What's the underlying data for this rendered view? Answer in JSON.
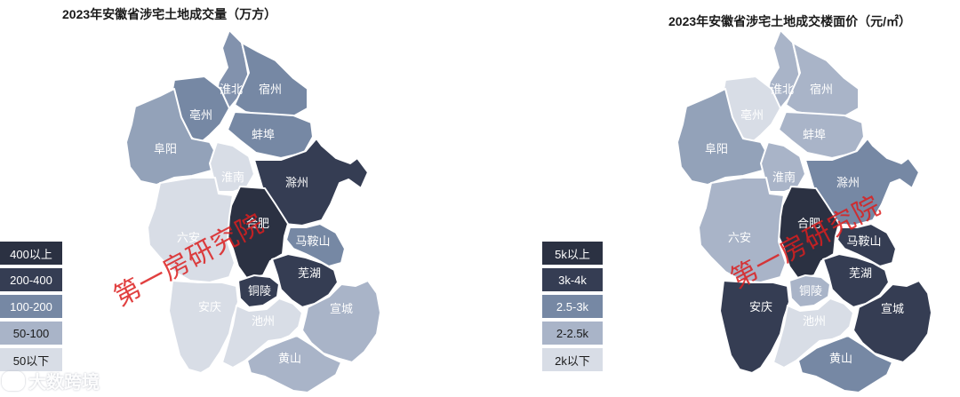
{
  "maps": [
    {
      "title": "2023年安徽省涉宅土地成交量（万方）",
      "legend": [
        {
          "label": "400以上",
          "color": "#2b3142"
        },
        {
          "label": "200-400",
          "color": "#353d53"
        },
        {
          "label": "100-200",
          "color": "#7688a4"
        },
        {
          "label": "50-100",
          "color": "#a9b4c8"
        },
        {
          "label": "50以下",
          "color": "#d8dde6"
        }
      ],
      "cities": [
        {
          "name": "淮北",
          "color": "#8292ad"
        },
        {
          "name": "宿州",
          "color": "#7688a4"
        },
        {
          "name": "亳州",
          "color": "#7688a4"
        },
        {
          "name": "蚌埠",
          "color": "#7688a4"
        },
        {
          "name": "阜阳",
          "color": "#93a2b9"
        },
        {
          "name": "淮南",
          "color": "#d8dde6"
        },
        {
          "name": "滁州",
          "color": "#353d53"
        },
        {
          "name": "合肥",
          "color": "#2b3142"
        },
        {
          "name": "六安",
          "color": "#d8dde6"
        },
        {
          "name": "马鞍山",
          "color": "#7688a4"
        },
        {
          "name": "芜湖",
          "color": "#353d53"
        },
        {
          "name": "铜陵",
          "color": "#353d53"
        },
        {
          "name": "安庆",
          "color": "#d8dde6"
        },
        {
          "name": "池州",
          "color": "#d8dde6"
        },
        {
          "name": "宣城",
          "color": "#a9b4c8"
        },
        {
          "name": "黄山",
          "color": "#a9b4c8"
        }
      ],
      "watermark": "第一房研究院"
    },
    {
      "title": "2023年安徽省涉宅土地成交楼面价（元/㎡）",
      "legend": [
        {
          "label": "5k以上",
          "color": "#2b3142"
        },
        {
          "label": "3k-4k",
          "color": "#353d53"
        },
        {
          "label": "2.5-3k",
          "color": "#7688a4"
        },
        {
          "label": "2-2.5k",
          "color": "#a9b4c8"
        },
        {
          "label": "2k以下",
          "color": "#d8dde6"
        }
      ],
      "cities": [
        {
          "name": "淮北",
          "color": "#a9b4c8"
        },
        {
          "name": "宿州",
          "color": "#a9b4c8"
        },
        {
          "name": "亳州",
          "color": "#d8dde6"
        },
        {
          "name": "蚌埠",
          "color": "#a9b4c8"
        },
        {
          "name": "阜阳",
          "color": "#93a2b9"
        },
        {
          "name": "淮南",
          "color": "#a9b4c8"
        },
        {
          "name": "滁州",
          "color": "#7688a4"
        },
        {
          "name": "合肥",
          "color": "#2b3142"
        },
        {
          "name": "六安",
          "color": "#a9b4c8"
        },
        {
          "name": "马鞍山",
          "color": "#353d53"
        },
        {
          "name": "芜湖",
          "color": "#353d53"
        },
        {
          "name": "铜陵",
          "color": "#a9b4c8"
        },
        {
          "name": "安庆",
          "color": "#353d53"
        },
        {
          "name": "池州",
          "color": "#d8dde6"
        },
        {
          "name": "宣城",
          "color": "#353d53"
        },
        {
          "name": "黄山",
          "color": "#7688a4"
        }
      ],
      "watermark": "第一房研究院"
    }
  ],
  "source_label": "大数跨境"
}
